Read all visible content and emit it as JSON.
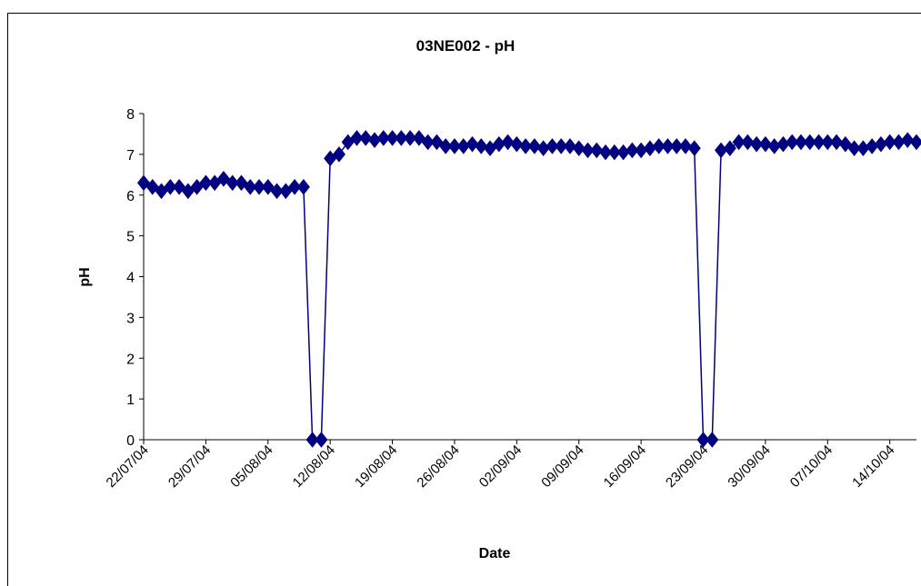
{
  "chart_data": {
    "type": "line",
    "title": "03NE002 - pH",
    "xlabel": "Date",
    "ylabel": "pH",
    "color": "#000080",
    "x": [
      "22/07/04",
      "23/07/04",
      "24/07/04",
      "25/07/04",
      "26/07/04",
      "27/07/04",
      "28/07/04",
      "29/07/04",
      "30/07/04",
      "31/07/04",
      "01/08/04",
      "02/08/04",
      "03/08/04",
      "04/08/04",
      "05/08/04",
      "06/08/04",
      "07/08/04",
      "08/08/04",
      "09/08/04",
      "10/08/04",
      "11/08/04",
      "12/08/04",
      "13/08/04",
      "14/08/04",
      "15/08/04",
      "16/08/04",
      "17/08/04",
      "18/08/04",
      "19/08/04",
      "20/08/04",
      "21/08/04",
      "22/08/04",
      "23/08/04",
      "24/08/04",
      "25/08/04",
      "26/08/04",
      "27/08/04",
      "28/08/04",
      "29/08/04",
      "30/08/04",
      "31/08/04",
      "01/09/04",
      "02/09/04",
      "03/09/04",
      "04/09/04",
      "05/09/04",
      "06/09/04",
      "07/09/04",
      "08/09/04",
      "09/09/04",
      "10/09/04",
      "11/09/04",
      "12/09/04",
      "13/09/04",
      "14/09/04",
      "15/09/04",
      "16/09/04",
      "17/09/04",
      "18/09/04",
      "19/09/04",
      "20/09/04",
      "21/09/04",
      "22/09/04",
      "23/09/04",
      "24/09/04",
      "25/09/04",
      "26/09/04",
      "27/09/04",
      "28/09/04",
      "29/09/04",
      "30/09/04",
      "01/10/04",
      "02/10/04",
      "03/10/04",
      "04/10/04",
      "05/10/04",
      "06/10/04",
      "07/10/04",
      "08/10/04",
      "09/10/04",
      "10/10/04",
      "11/10/04",
      "12/10/04",
      "13/10/04",
      "14/10/04",
      "15/10/04",
      "16/10/04",
      "17/10/04"
    ],
    "values": [
      6.3,
      6.2,
      6.1,
      6.2,
      6.2,
      6.1,
      6.2,
      6.3,
      6.3,
      6.4,
      6.3,
      6.3,
      6.2,
      6.2,
      6.2,
      6.1,
      6.1,
      6.2,
      6.2,
      0,
      0,
      6.9,
      7.0,
      7.3,
      7.4,
      7.4,
      7.35,
      7.4,
      7.4,
      7.4,
      7.4,
      7.4,
      7.3,
      7.3,
      7.2,
      7.2,
      7.2,
      7.25,
      7.2,
      7.15,
      7.25,
      7.3,
      7.25,
      7.2,
      7.2,
      7.15,
      7.2,
      7.2,
      7.2,
      7.15,
      7.1,
      7.1,
      7.05,
      7.05,
      7.05,
      7.1,
      7.1,
      7.15,
      7.2,
      7.2,
      7.2,
      7.2,
      7.15,
      0,
      0,
      7.1,
      7.15,
      7.3,
      7.3,
      7.25,
      7.25,
      7.2,
      7.25,
      7.3,
      7.3,
      7.3,
      7.3,
      7.3,
      7.3,
      7.25,
      7.15,
      7.15,
      7.2,
      7.25,
      7.3,
      7.3,
      7.35,
      7.3
    ],
    "xlim": [
      "22/07/04",
      "17/10/04"
    ],
    "xticks": [
      "22/07/04",
      "29/07/04",
      "05/08/04",
      "12/08/04",
      "19/08/04",
      "26/08/04",
      "02/09/04",
      "09/09/04",
      "16/09/04",
      "23/09/04",
      "30/09/04",
      "07/10/04",
      "14/10/04"
    ],
    "ylim": [
      0,
      8
    ],
    "yticks": [
      0,
      1,
      2,
      3,
      4,
      5,
      6,
      7,
      8
    ],
    "grid": false
  }
}
